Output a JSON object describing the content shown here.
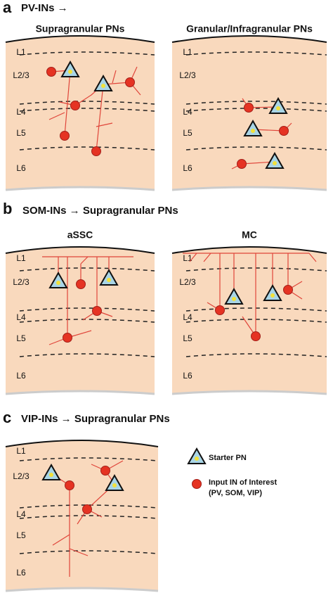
{
  "panels": [
    {
      "label": "a",
      "title": "PV-INs →",
      "subpanels": [
        {
          "title": "Supragranular PNs",
          "layers": [
            "L1",
            "L2/3",
            "L4",
            "L5",
            "L6"
          ]
        },
        {
          "title": "Granular/Infragranular PNs",
          "layers": [
            "L1",
            "L2/3",
            "L4",
            "L5",
            "L6"
          ]
        }
      ]
    },
    {
      "label": "b",
      "title": "SOM-INs → Supragranular PNs",
      "subpanels": [
        {
          "title": "aSSC",
          "layers": [
            "L1",
            "L2/3",
            "L4",
            "L5",
            "L6"
          ]
        },
        {
          "title": "MC",
          "layers": [
            "L1",
            "L2/3",
            "L4",
            "L5",
            "L6"
          ]
        }
      ]
    },
    {
      "label": "c",
      "title": "VIP-INs → Supragranular PNs",
      "subpanels": [
        {
          "layers": [
            "L1",
            "L2/3",
            "L4",
            "L5",
            "L6"
          ]
        }
      ]
    }
  ],
  "legend": {
    "starter": "Starter PN",
    "input": [
      "Input IN of Interest",
      "(PV, SOM, VIP)"
    ]
  }
}
